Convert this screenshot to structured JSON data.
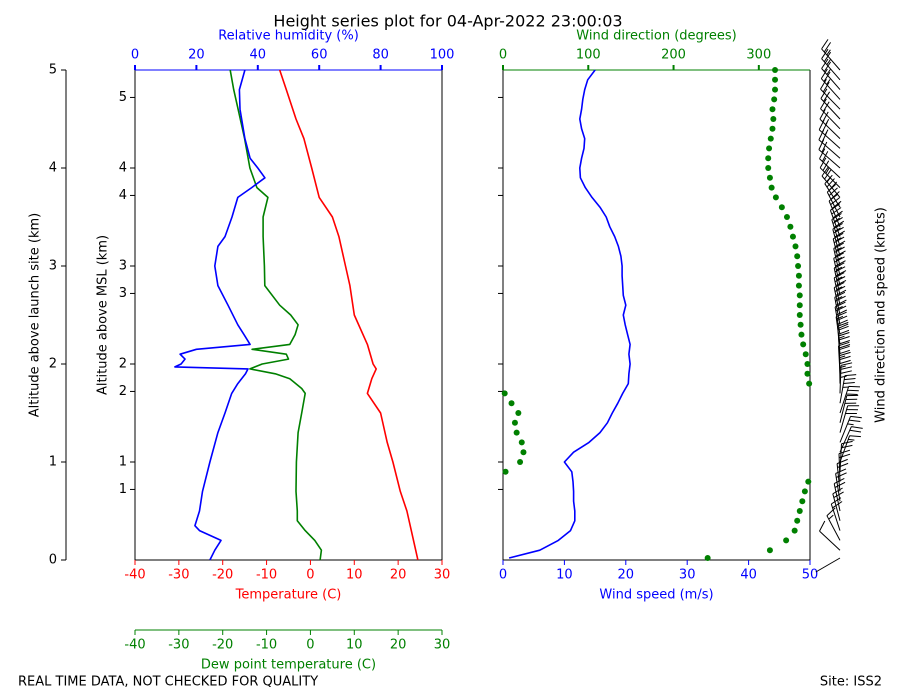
{
  "title": "Height series plot for 04-Apr-2022 23:00:03",
  "footer": {
    "left": "REAL TIME DATA, NOT CHECKED FOR QUALITY",
    "right": "Site: ISS2"
  },
  "chart_data": [
    {
      "type": "line",
      "ylabel": "Altitude above MSL (km)",
      "ylim": [
        0.28,
        5.28
      ],
      "yticks": [
        {
          "value": 1,
          "label": "1"
        },
        {
          "value": 1.28,
          "label": "1"
        },
        {
          "value": 2,
          "label": "2"
        },
        {
          "value": 2.28,
          "label": "2"
        },
        {
          "value": 3,
          "label": "3"
        },
        {
          "value": 3.28,
          "label": "3"
        },
        {
          "value": 4,
          "label": "4"
        },
        {
          "value": 4.28,
          "label": "4"
        },
        {
          "value": 5,
          "label": "5"
        }
      ],
      "y2label": "Altitude above launch site (km)",
      "y2lim": [
        0,
        5
      ],
      "y2ticks": [
        0,
        1,
        2,
        3,
        4,
        5
      ],
      "xlabel": "Temperature (C)",
      "xlim": [
        -40,
        30
      ],
      "xticks": [
        -40,
        -30,
        -20,
        -10,
        0,
        10,
        20,
        30
      ],
      "xcolor": "#ff0000",
      "x2label": "Relative humidity (%)",
      "x2lim": [
        0,
        100
      ],
      "x2ticks": [
        0,
        20,
        40,
        60,
        80,
        100
      ],
      "x2color": "#0000ff",
      "x3label": "Dew point temperature (C)",
      "x3lim": [
        -40,
        30
      ],
      "x3ticks": [
        -40,
        -30,
        -20,
        -10,
        0,
        10,
        20,
        30
      ],
      "x3color": "#008000",
      "series": [
        {
          "type": "line",
          "axis": "x",
          "color": "#ff0000",
          "y": [
            0,
            0.1,
            0.3,
            0.5,
            0.7,
            1.0,
            1.2,
            1.5,
            1.7,
            1.85,
            1.95,
            2.0,
            2.2,
            2.5,
            2.8,
            3.0,
            3.3,
            3.5,
            3.7,
            4.0,
            4.3,
            4.5,
            4.8,
            5.0
          ],
          "values": [
            24.5,
            24,
            23,
            22,
            20.5,
            18.8,
            17.5,
            16,
            13,
            14,
            15,
            14.3,
            13,
            10,
            9,
            8,
            6.5,
            5,
            2,
            0.3,
            -1.5,
            -3.3,
            -5.5,
            -7
          ]
        },
        {
          "type": "line",
          "axis": "x3",
          "color": "#008000",
          "y": [
            0,
            0.1,
            0.2,
            0.3,
            0.4,
            0.5,
            0.7,
            1.0,
            1.3,
            1.5,
            1.7,
            1.75,
            1.85,
            1.9,
            1.95,
            2.0,
            2.05,
            2.1,
            2.15,
            2.2,
            2.3,
            2.4,
            2.5,
            2.6,
            2.8,
            3.0,
            3.3,
            3.5,
            3.7,
            3.8,
            4.0,
            4.3,
            4.6,
            4.8,
            5.0
          ],
          "values": [
            2.2,
            2.5,
            1,
            -1.2,
            -3,
            -3,
            -3.3,
            -3.2,
            -2.8,
            -2,
            -1.2,
            -2,
            -4.7,
            -8,
            -13.8,
            -11,
            -5,
            -5.5,
            -13.3,
            -4.7,
            -3.5,
            -2.8,
            -4.5,
            -7,
            -10.4,
            -10.5,
            -10.8,
            -10.8,
            -9.7,
            -12.2,
            -13.8,
            -15,
            -16.5,
            -17.5,
            -18.3
          ]
        },
        {
          "type": "line",
          "axis": "x2",
          "color": "#0000ff",
          "y": [
            0,
            0.1,
            0.2,
            0.3,
            0.35,
            0.5,
            0.7,
            1.0,
            1.3,
            1.5,
            1.7,
            1.8,
            1.9,
            1.95,
            1.97,
            2.0,
            2.05,
            2.1,
            2.15,
            2.2,
            2.3,
            2.4,
            2.6,
            2.8,
            3.0,
            3.2,
            3.3,
            3.5,
            3.7,
            3.8,
            3.9,
            4.0,
            4.1,
            4.3,
            4.6,
            4.8,
            5.0
          ],
          "values": [
            24.4,
            26,
            28,
            21,
            19.5,
            21,
            22,
            24.4,
            27,
            29.3,
            31.5,
            33.5,
            36,
            36.8,
            13,
            15,
            16.3,
            14.7,
            20,
            37.5,
            35.5,
            33.5,
            30.3,
            27,
            26,
            27,
            29.3,
            31.6,
            33.5,
            38,
            42.3,
            40,
            37.5,
            35.8,
            34.2,
            34,
            35.8
          ]
        }
      ]
    },
    {
      "type": "line",
      "ylim": [
        0,
        5
      ],
      "xlabel": "Wind speed (m/s)",
      "xlim": [
        0,
        50
      ],
      "xticks": [
        0,
        10,
        20,
        30,
        40,
        50
      ],
      "xcolor": "#0000ff",
      "x2label": "Wind direction (degrees)",
      "x2lim": [
        0,
        360
      ],
      "x2ticks": [
        0,
        100,
        200,
        300
      ],
      "x2color": "#008000",
      "barb_label": "Wind direction and speed (knots)",
      "barbs": true,
      "y": [
        0.02,
        0.1,
        0.2,
        0.3,
        0.4,
        0.5,
        0.6,
        0.7,
        0.8,
        0.9,
        1.0,
        1.1,
        1.2,
        1.3,
        1.4,
        1.5,
        1.6,
        1.7,
        1.8,
        1.9,
        2.0,
        2.1,
        2.2,
        2.3,
        2.4,
        2.5,
        2.6,
        2.7,
        2.8,
        2.9,
        3.0,
        3.1,
        3.2,
        3.3,
        3.4,
        3.5,
        3.6,
        3.7,
        3.8,
        3.9,
        4.0,
        4.1,
        4.2,
        4.3,
        4.4,
        4.5,
        4.6,
        4.7,
        4.8,
        4.9,
        5.0
      ],
      "series": [
        {
          "type": "line",
          "axis": "x",
          "color": "#0000ff",
          "values": [
            1,
            6,
            9,
            11,
            11.7,
            11.7,
            11.5,
            11.5,
            11.4,
            11.2,
            10,
            11.5,
            14,
            15.8,
            17,
            17.8,
            18.7,
            19.5,
            20.4,
            20.5,
            20.7,
            20.5,
            20.7,
            20.3,
            19.9,
            19.6,
            20,
            19.6,
            19.5,
            19.4,
            19.4,
            19.2,
            18.8,
            18.2,
            17.4,
            16.8,
            15.8,
            14.5,
            13.4,
            12.6,
            12.5,
            12.8,
            13.2,
            13.3,
            12.8,
            12.5,
            12.8,
            13,
            13.3,
            13.8,
            15
          ]
        },
        {
          "type": "scatter",
          "axis": "x2",
          "color": "#008000",
          "values": [
            240,
            313,
            332,
            342,
            345,
            348,
            351,
            354,
            358,
            3,
            20,
            24,
            22,
            16,
            14,
            18,
            10,
            2,
            359,
            357,
            357,
            355,
            352,
            350,
            349,
            348,
            348,
            348,
            347,
            347,
            346,
            345,
            343,
            340,
            337,
            333,
            327,
            320,
            315,
            313,
            311,
            311,
            312,
            314,
            316,
            317,
            316,
            318,
            319,
            319,
            319
          ]
        }
      ]
    }
  ]
}
